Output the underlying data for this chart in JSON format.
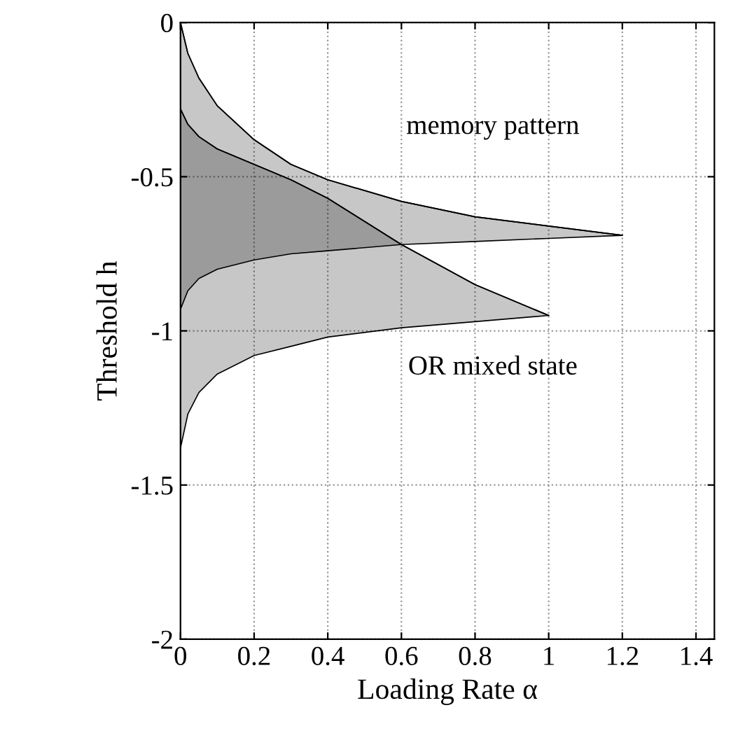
{
  "chart_data": {
    "type": "line",
    "xlabel": "Loading Rate α",
    "ylabel": "Threshold h",
    "series": [
      {
        "color": "#000000",
        "x": [
          0,
          0.02,
          0.05,
          0.1,
          0.2,
          0.3,
          0.4,
          0.6,
          0.8,
          1.0,
          1.2
        ],
        "values": [
          0,
          -0.1,
          -0.18,
          -0.27,
          -0.38,
          -0.46,
          -0.51,
          -0.58,
          -0.63,
          -0.66,
          -0.69
        ],
        "upper": [
          0,
          -0.1,
          -0.18,
          -0.27,
          -0.38,
          -0.46,
          -0.51,
          -0.58,
          -0.63,
          -0.66,
          -0.69
        ],
        "lower": [
          -0.93,
          -0.87,
          -0.83,
          -0.8,
          -0.77,
          -0.75,
          -0.74,
          -0.72,
          -0.71,
          -0.7,
          -0.69
        ]
      },
      {
        "color": "#000000",
        "x": [
          0,
          0.02,
          0.05,
          0.1,
          0.2,
          0.3,
          0.4,
          0.6,
          0.8,
          1.0
        ],
        "values": [
          -0.28,
          -0.33,
          -0.37,
          -0.41,
          -0.46,
          -0.51,
          -0.57,
          -0.72,
          -0.85,
          -0.95
        ],
        "upper": [
          -0.28,
          -0.33,
          -0.37,
          -0.41,
          -0.46,
          -0.51,
          -0.57,
          -0.72,
          -0.85,
          -0.95
        ],
        "lower": [
          -1.38,
          -1.27,
          -1.2,
          -1.14,
          -1.08,
          -1.05,
          -1.02,
          -0.99,
          -0.97,
          -0.95
        ]
      }
    ],
    "annotations": [
      "memory pattern",
      "OR mixed state"
    ],
    "xlim": [
      0,
      1.45
    ],
    "ylim": [
      -2,
      0
    ],
    "xticks": [
      0,
      0.2,
      0.4,
      0.6,
      0.8,
      1,
      1.2,
      1.4
    ],
    "yticks": [
      0,
      -0.5,
      -1,
      -1.5,
      -2
    ],
    "grid": true
  }
}
